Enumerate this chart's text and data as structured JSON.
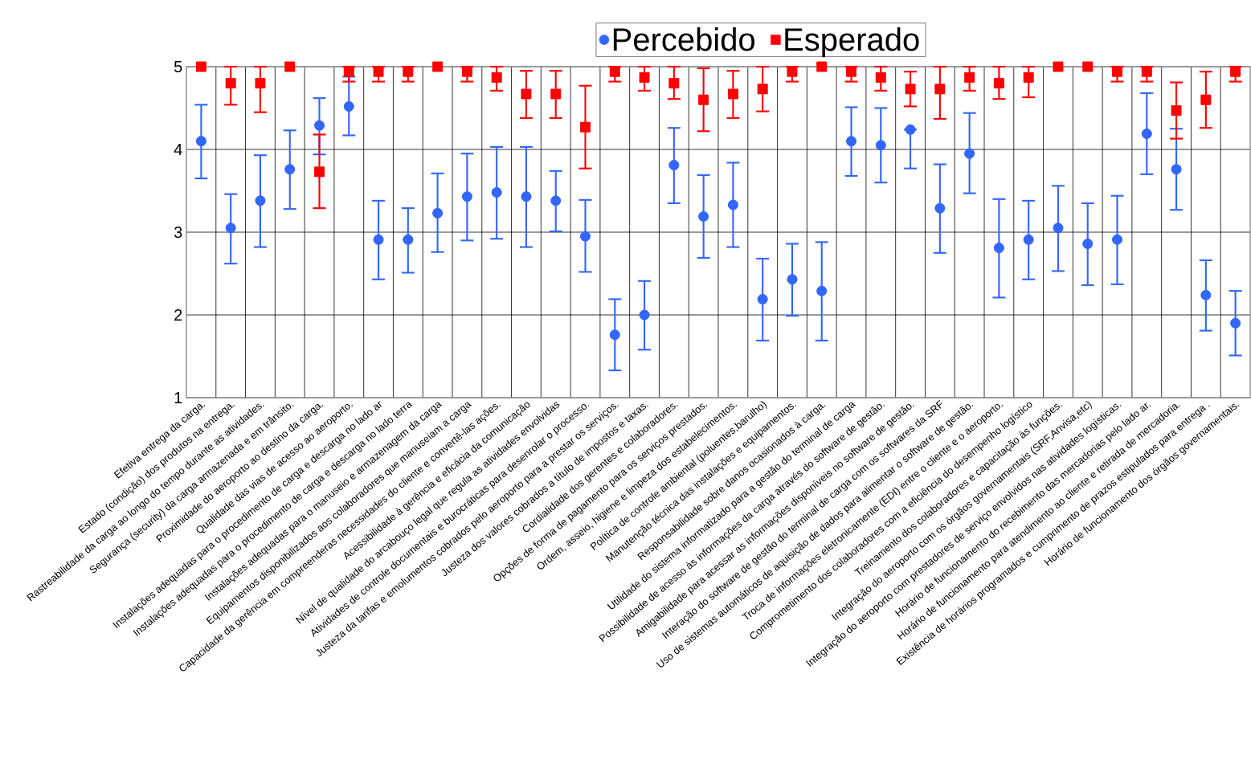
{
  "chart_data": {
    "type": "scatter",
    "legend": "top",
    "grid": true,
    "ylim": [
      1,
      5
    ],
    "yticks": [
      1,
      2,
      3,
      4,
      5
    ],
    "categories": [
      "Efetiva entrega da carga.",
      "Estado (condição) dos produtos na entrega.",
      "Rastreabilidade da carga ao longo do tempo durante as atividades.",
      "Segurança (security) da carga armazenada e em trânsito.",
      "Proximidade do aeroporto ao destino da carga.",
      "Qualidade das vias de acesso ao aeroporto.",
      "Instalações adequadas para o procedimento de carga e descarga no lado ar",
      "Instalações adequadas para o procedimento de carga e descarga no lado terra",
      "Instalações adequadas para o manuseio e armazenagem da carga",
      "Equipamentos disponibilizados aos colaboradores que manuseiam a carga",
      "Capacidade da gerência em compreenderas necessidades do cliente e convertê-las ações.",
      "Acessibilidade à gerência e eficácia da comunicação",
      "Nível de qualidade do arcabouço legal que regula as atividades envolvidas",
      "Atividades de controle documentais e burocráticas para desenrolar o processo.",
      "Justeza da tarifas e emolumentos cobrados pelo aeroporto para a prestar os serviços.",
      "Justeza dos valores cobrados a título de impostos e taxas.",
      "Cordialidade dos gerentes e colaboradores.",
      "Opções de forma de pagamento para os serviços prestados.",
      "Ordem, asseio, higiene e limpeza dos estabelecimentos.",
      "Política de controle ambiental (poluentes,barulho)",
      "Manutenção técnica das instalações e equipamentos.",
      "Responsabilidade sobre danos ocasionados à carga.",
      "Utilidade do sistema informatizado para a gestão do terminal de carga",
      "Possibilidade de acesso às informações da carga através do software de gestão.",
      "Amigabilidade para acessar as informações disponíveis no software de gestão.",
      "Interação do software de gestão do terminal de carga com os softwares da SRF",
      "Uso de sistemas automáticos de aquisição de dados para alimentar o software de gestão.",
      "Troca de informações eletronicamente (EDI) entre o cliente e o aeroporto.",
      "Comprometimento dos colaboradores com a eficiência do desempenho logístico",
      "Treinamento dos colaboradores e capacitação às funções.",
      "Integração do aeroporto com os órgãos governamentais (SRF,Anvisa,etc)",
      "Integração do aeroporto com prestadores de serviço envolvidos nas atividades logísticas.",
      "Horário de funcionamento do recebimento das mercadorias pelo lado ar.",
      "Horário de funcionamento para atendimento ao cliente e retirada de mercadoria.",
      "Existência de horários programados e cumprimento de prazos estipulados para entrega .",
      "Horário de funcionamento dos órgãos governamentais."
    ],
    "series": [
      {
        "name": "Percebido",
        "color": "#3366ff",
        "marker": "circle",
        "values": [
          4.1,
          3.05,
          3.38,
          3.76,
          4.29,
          4.52,
          2.91,
          2.91,
          3.23,
          3.43,
          3.48,
          3.43,
          3.38,
          2.95,
          1.76,
          2.0,
          3.81,
          3.19,
          3.33,
          2.19,
          2.43,
          2.29,
          4.1,
          4.05,
          4.24,
          3.29,
          3.95,
          2.81,
          2.91,
          3.05,
          2.86,
          2.91,
          4.19,
          3.76,
          2.24,
          1.9
        ],
        "errors": [
          [
            3.65,
            4.54
          ],
          [
            2.62,
            3.46
          ],
          [
            2.82,
            3.93
          ],
          [
            3.28,
            4.23
          ],
          [
            3.94,
            4.62
          ],
          [
            4.17,
            4.88
          ],
          [
            2.43,
            3.38
          ],
          [
            2.51,
            3.29
          ],
          [
            2.76,
            3.71
          ],
          [
            2.9,
            3.95
          ],
          [
            2.92,
            4.03
          ],
          [
            2.82,
            4.03
          ],
          [
            3.01,
            3.74
          ],
          [
            2.52,
            3.39
          ],
          [
            1.33,
            2.19
          ],
          [
            1.58,
            2.41
          ],
          [
            3.35,
            4.26
          ],
          [
            2.69,
            3.69
          ],
          [
            2.82,
            3.84
          ],
          [
            1.69,
            2.68
          ],
          [
            1.99,
            2.86
          ],
          [
            1.69,
            2.88
          ],
          [
            3.68,
            4.51
          ],
          [
            3.6,
            4.5
          ],
          [
            3.77,
            4.24
          ],
          [
            2.75,
            3.82
          ],
          [
            3.47,
            4.44
          ],
          [
            2.21,
            3.4
          ],
          [
            2.43,
            3.38
          ],
          [
            2.53,
            3.56
          ],
          [
            2.36,
            3.35
          ],
          [
            2.37,
            3.44
          ],
          [
            3.7,
            4.68
          ],
          [
            3.27,
            4.25
          ],
          [
            1.81,
            2.66
          ],
          [
            1.51,
            2.29
          ]
        ]
      },
      {
        "name": "Esperado",
        "color": "#ff0000",
        "marker": "square",
        "values": [
          5,
          4.8,
          4.8,
          5,
          3.73,
          4.94,
          4.94,
          4.94,
          5,
          4.94,
          4.87,
          4.67,
          4.67,
          4.27,
          4.94,
          4.87,
          4.8,
          4.6,
          4.67,
          4.73,
          4.94,
          5,
          4.94,
          4.87,
          4.73,
          4.73,
          4.87,
          4.8,
          4.87,
          5,
          5,
          4.94,
          4.94,
          4.47,
          4.6,
          4.94
        ],
        "errors": [
          null,
          [
            4.54,
            5
          ],
          [
            4.45,
            5
          ],
          null,
          [
            3.29,
            4.18
          ],
          [
            4.82,
            5
          ],
          [
            4.82,
            5
          ],
          [
            4.82,
            5
          ],
          null,
          [
            4.82,
            5
          ],
          [
            4.71,
            5
          ],
          [
            4.38,
            4.95
          ],
          [
            4.38,
            4.95
          ],
          [
            3.77,
            4.77
          ],
          [
            4.82,
            5
          ],
          [
            4.71,
            5
          ],
          [
            4.61,
            5
          ],
          [
            4.22,
            4.98
          ],
          [
            4.38,
            4.95
          ],
          [
            4.46,
            5
          ],
          [
            4.82,
            5
          ],
          null,
          [
            4.82,
            5
          ],
          [
            4.71,
            5
          ],
          [
            4.52,
            4.94
          ],
          [
            4.37,
            5
          ],
          [
            4.71,
            5
          ],
          [
            4.61,
            5
          ],
          [
            4.63,
            5
          ],
          null,
          null,
          [
            4.82,
            5
          ],
          [
            4.82,
            5
          ],
          [
            4.13,
            4.81
          ],
          [
            4.26,
            4.94
          ],
          [
            4.82,
            5
          ]
        ]
      }
    ]
  }
}
